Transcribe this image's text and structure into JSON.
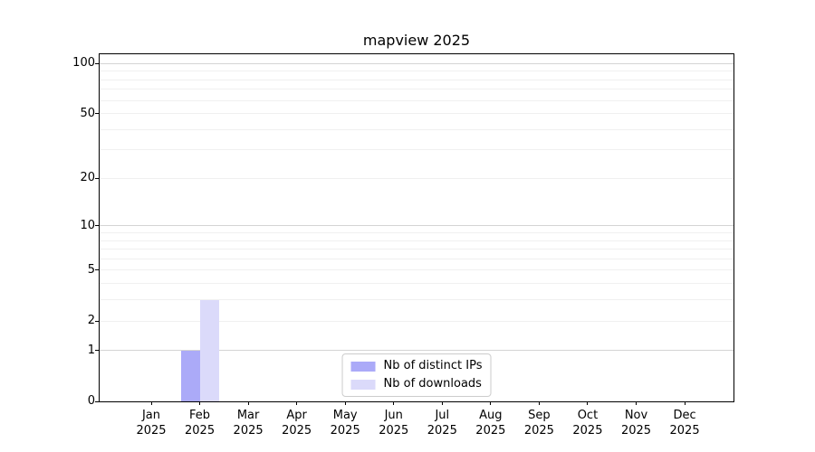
{
  "chart_data": {
    "type": "bar",
    "title": "mapview 2025",
    "categories": [
      "Jan 2025",
      "Feb 2025",
      "Mar 2025",
      "Apr 2025",
      "May 2025",
      "Jun 2025",
      "Jul 2025",
      "Aug 2025",
      "Sep 2025",
      "Oct 2025",
      "Nov 2025",
      "Dec 2025"
    ],
    "series": [
      {
        "name": "Nb of distinct IPs",
        "color": "#abaaf8",
        "values": [
          0,
          1,
          0,
          0,
          0,
          0,
          0,
          0,
          0,
          0,
          0,
          0
        ]
      },
      {
        "name": "Nb of downloads",
        "color": "#dbdafa",
        "values": [
          0,
          3,
          0,
          0,
          0,
          0,
          0,
          0,
          0,
          0,
          0,
          0
        ]
      }
    ],
    "xlabel": "",
    "ylabel": "",
    "y_scale": "log1p",
    "y_axis_max": 113.5,
    "y_tick_values": [
      0,
      1,
      2,
      5,
      10,
      20,
      50,
      100
    ],
    "y_major_gridlines": [
      1,
      10,
      100
    ],
    "y_minor_gridlines": [
      2,
      3,
      4,
      5,
      6,
      7,
      8,
      9,
      20,
      30,
      40,
      50,
      60,
      70,
      80,
      90
    ],
    "grid": true,
    "legend_position": "lower center",
    "colors": {
      "background": "#ffffff",
      "axis": "#000000",
      "major_grid": "#d4d4d4",
      "minor_grid": "#f0f0f0",
      "legend_border": "#cccccc",
      "text": "#000000"
    }
  }
}
